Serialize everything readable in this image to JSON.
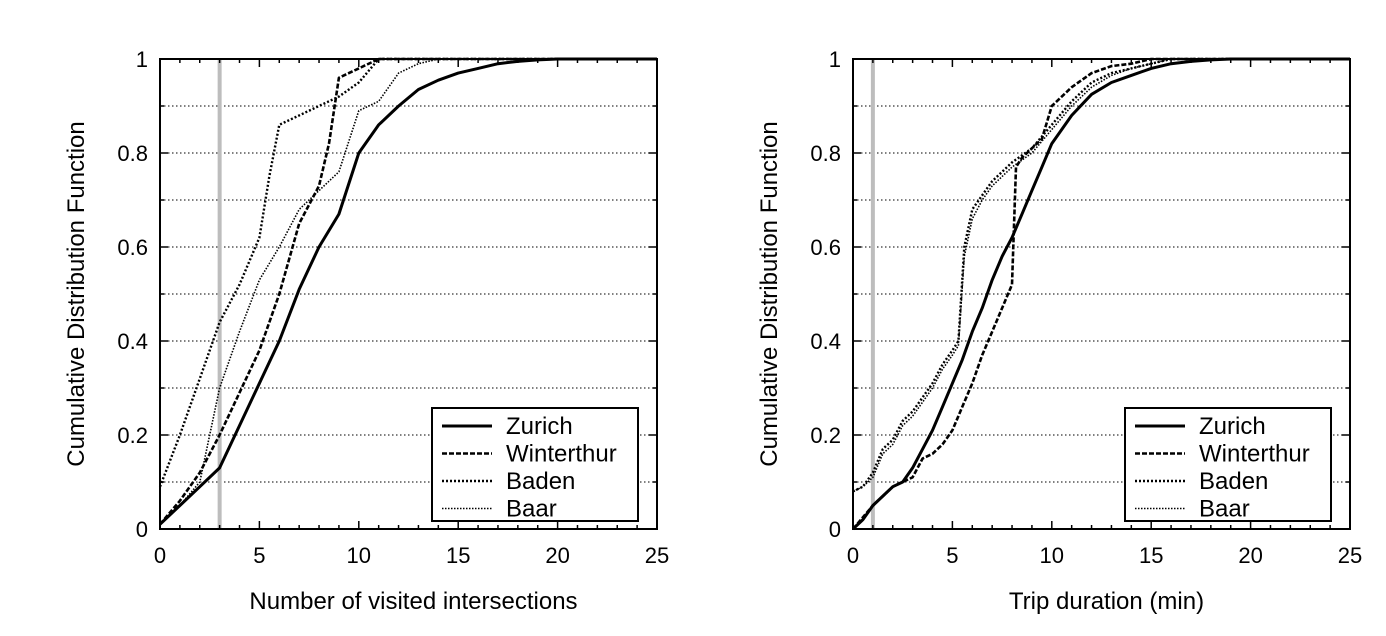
{
  "chart_data": [
    {
      "type": "line",
      "xlabel": "Number of visited intersections",
      "ylabel": "Cumulative Distribution Function",
      "xlim": [
        0,
        25
      ],
      "ylim": [
        0,
        1
      ],
      "xticks": [
        "0",
        "5",
        "10",
        "15",
        "20",
        "25"
      ],
      "yticks": [
        "0",
        "0.2",
        "0.4",
        "0.6",
        "0.8",
        "1"
      ],
      "grid": "horizontal dotted",
      "legend_position": "bottom-right",
      "reference_line": {
        "x": 3,
        "color": "#bdbdbd"
      },
      "series": [
        {
          "name": "Zurich",
          "style": "solid",
          "x": [
            0,
            1,
            2,
            3,
            4,
            5,
            6,
            7,
            8,
            9,
            10,
            11,
            12,
            13,
            14,
            15,
            16,
            17,
            18,
            19,
            20,
            21,
            22,
            23,
            24,
            25
          ],
          "y": [
            0.01,
            0.05,
            0.09,
            0.13,
            0.22,
            0.31,
            0.4,
            0.51,
            0.6,
            0.67,
            0.8,
            0.86,
            0.9,
            0.935,
            0.955,
            0.97,
            0.98,
            0.99,
            0.995,
            0.998,
            1,
            1,
            1,
            1,
            1,
            1
          ]
        },
        {
          "name": "Winterthur",
          "style": "dashed",
          "x": [
            0,
            1,
            2,
            3,
            4,
            5,
            6,
            7,
            8,
            8.5,
            9,
            9.5,
            10,
            11,
            12,
            13,
            14,
            15,
            20,
            25
          ],
          "y": [
            0.01,
            0.06,
            0.12,
            0.2,
            0.29,
            0.38,
            0.5,
            0.65,
            0.73,
            0.82,
            0.96,
            0.97,
            0.98,
            1,
            1,
            1,
            1,
            1,
            1,
            1
          ]
        },
        {
          "name": "Baden",
          "style": "dotted",
          "x": [
            0,
            1,
            2,
            3,
            4,
            5,
            5.5,
            6,
            7,
            8,
            9,
            10,
            11,
            12,
            13,
            14,
            15,
            20,
            25
          ],
          "y": [
            0.09,
            0.2,
            0.32,
            0.44,
            0.52,
            0.62,
            0.75,
            0.86,
            0.88,
            0.9,
            0.92,
            0.95,
            1,
            1,
            1,
            1,
            1,
            1,
            1
          ]
        },
        {
          "name": "Baar",
          "style": "fine-dotted",
          "x": [
            0,
            1,
            2,
            3,
            4,
            5,
            6,
            7,
            8,
            9,
            10,
            11,
            12,
            13,
            14,
            15,
            20,
            25
          ],
          "y": [
            0.01,
            0.05,
            0.1,
            0.3,
            0.42,
            0.53,
            0.6,
            0.68,
            0.72,
            0.76,
            0.89,
            0.91,
            0.97,
            0.99,
            1,
            1,
            1,
            1
          ]
        }
      ]
    },
    {
      "type": "line",
      "xlabel": "Trip duration (min)",
      "ylabel": "Cumulative Distribution Function",
      "xlim": [
        0,
        25
      ],
      "ylim": [
        0,
        1
      ],
      "xticks": [
        "0",
        "5",
        "10",
        "15",
        "20",
        "25"
      ],
      "yticks": [
        "0",
        "0.2",
        "0.4",
        "0.6",
        "0.8",
        "1"
      ],
      "grid": "horizontal dotted",
      "legend_position": "bottom-right",
      "reference_line": {
        "x": 1,
        "color": "#bdbdbd"
      },
      "series": [
        {
          "name": "Zurich",
          "style": "solid",
          "x": [
            0,
            0.5,
            1,
            1.5,
            2,
            2.5,
            3,
            3.5,
            4,
            4.5,
            5,
            5.5,
            6,
            6.5,
            7,
            7.5,
            8,
            8.5,
            9,
            9.5,
            10,
            11,
            12,
            13,
            14,
            15,
            16,
            17,
            18,
            19,
            20,
            25
          ],
          "y": [
            0,
            0.02,
            0.05,
            0.07,
            0.09,
            0.1,
            0.13,
            0.17,
            0.21,
            0.26,
            0.31,
            0.36,
            0.42,
            0.47,
            0.53,
            0.58,
            0.62,
            0.67,
            0.72,
            0.77,
            0.82,
            0.88,
            0.925,
            0.95,
            0.965,
            0.98,
            0.99,
            0.995,
            0.998,
            1,
            1,
            1
          ]
        },
        {
          "name": "Winterthur",
          "style": "dashed",
          "x": [
            0,
            1,
            2,
            3,
            3.5,
            4,
            4.5,
            5,
            5.5,
            6,
            6.5,
            7,
            7.5,
            8,
            8.2,
            8.5,
            9,
            9.5,
            10,
            11,
            12,
            13,
            14,
            15,
            16,
            17,
            18,
            20,
            25
          ],
          "y": [
            0,
            0.05,
            0.09,
            0.11,
            0.15,
            0.16,
            0.18,
            0.21,
            0.26,
            0.31,
            0.37,
            0.42,
            0.47,
            0.52,
            0.77,
            0.79,
            0.81,
            0.83,
            0.9,
            0.94,
            0.97,
            0.985,
            0.99,
            1,
            1,
            1,
            1,
            1,
            1
          ]
        },
        {
          "name": "Baden",
          "style": "dotted",
          "x": [
            0,
            0.5,
            1,
            1.5,
            2,
            2.5,
            3,
            3.5,
            4,
            4.5,
            5,
            5.3,
            5.6,
            6,
            6.5,
            7,
            8,
            9,
            10,
            11,
            12,
            13,
            14,
            15,
            16,
            17,
            18,
            20,
            25
          ],
          "y": [
            0.08,
            0.09,
            0.12,
            0.17,
            0.19,
            0.23,
            0.25,
            0.28,
            0.31,
            0.35,
            0.38,
            0.4,
            0.6,
            0.68,
            0.71,
            0.74,
            0.78,
            0.81,
            0.86,
            0.91,
            0.95,
            0.97,
            0.98,
            0.99,
            1,
            1,
            1,
            1,
            1
          ]
        },
        {
          "name": "Baar",
          "style": "fine-dotted",
          "x": [
            0,
            0.5,
            1,
            1.5,
            2,
            2.5,
            3,
            3.5,
            4,
            4.5,
            5,
            5.3,
            5.6,
            6,
            6.5,
            7,
            8,
            9,
            10,
            11,
            12,
            13,
            14,
            15,
            16,
            17,
            18,
            20,
            25
          ],
          "y": [
            0.08,
            0.09,
            0.11,
            0.16,
            0.18,
            0.22,
            0.24,
            0.27,
            0.3,
            0.34,
            0.37,
            0.39,
            0.58,
            0.66,
            0.7,
            0.73,
            0.77,
            0.8,
            0.85,
            0.9,
            0.94,
            0.965,
            0.98,
            0.99,
            1,
            1,
            1,
            1,
            1
          ]
        }
      ]
    }
  ]
}
